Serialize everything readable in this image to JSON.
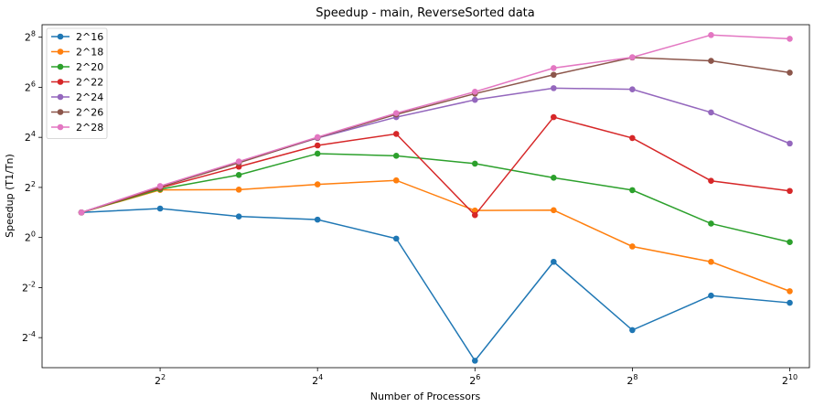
{
  "chart_data": {
    "type": "line",
    "title": "Speedup - main, ReverseSorted data",
    "xlabel": "Number of Processors",
    "ylabel": "Speedup (T1/Tn)",
    "x_scale": "log2",
    "y_scale": "log2",
    "xlim_exp": [
      0.5,
      10.25
    ],
    "ylim_exp": [
      -5.2,
      8.5
    ],
    "x_ticks": [
      {
        "exp": 2,
        "label": "2^2"
      },
      {
        "exp": 4,
        "label": "2^4"
      },
      {
        "exp": 6,
        "label": "2^6"
      },
      {
        "exp": 8,
        "label": "2^8"
      },
      {
        "exp": 10,
        "label": "2^10"
      }
    ],
    "y_ticks": [
      {
        "exp": -4,
        "label": "2^-4"
      },
      {
        "exp": -2,
        "label": "2^-2"
      },
      {
        "exp": 0,
        "label": "2^0"
      },
      {
        "exp": 2,
        "label": "2^2"
      },
      {
        "exp": 4,
        "label": "2^4"
      },
      {
        "exp": 6,
        "label": "2^6"
      },
      {
        "exp": 8,
        "label": "2^8"
      }
    ],
    "x": [
      2,
      4,
      8,
      16,
      32,
      64,
      128,
      256,
      512,
      1024
    ],
    "legend_position": "top-left",
    "grid": false,
    "series": [
      {
        "name": "2^16",
        "color": "#1f77b4",
        "values": [
          2.0,
          2.23,
          1.79,
          1.64,
          0.97,
          0.033,
          0.51,
          0.077,
          0.2,
          0.164
        ]
      },
      {
        "name": "2^18",
        "color": "#ff7f0e",
        "values": [
          2.0,
          3.73,
          3.76,
          4.35,
          4.86,
          2.11,
          2.13,
          0.78,
          0.51,
          0.226
        ]
      },
      {
        "name": "2^20",
        "color": "#2ca02c",
        "values": [
          2.0,
          3.81,
          5.65,
          10.2,
          9.6,
          7.73,
          5.23,
          3.71,
          1.47,
          0.88
        ]
      },
      {
        "name": "2^22",
        "color": "#d62728",
        "values": [
          2.0,
          3.95,
          7.1,
          12.8,
          17.6,
          1.86,
          28.0,
          15.7,
          4.8,
          3.63
        ]
      },
      {
        "name": "2^24",
        "color": "#9467bd",
        "values": [
          2.0,
          4.1,
          8.0,
          15.7,
          28.0,
          45.2,
          62.5,
          60.5,
          31.9,
          13.5
        ]
      },
      {
        "name": "2^26",
        "color": "#8c564b",
        "values": [
          2.0,
          4.05,
          7.9,
          15.9,
          30.2,
          53.6,
          90.5,
          146,
          133,
          96
        ]
      },
      {
        "name": "2^28",
        "color": "#e377c2",
        "values": [
          2.0,
          4.15,
          8.2,
          16.1,
          31.3,
          56.5,
          109,
          147,
          272,
          245
        ]
      }
    ]
  }
}
